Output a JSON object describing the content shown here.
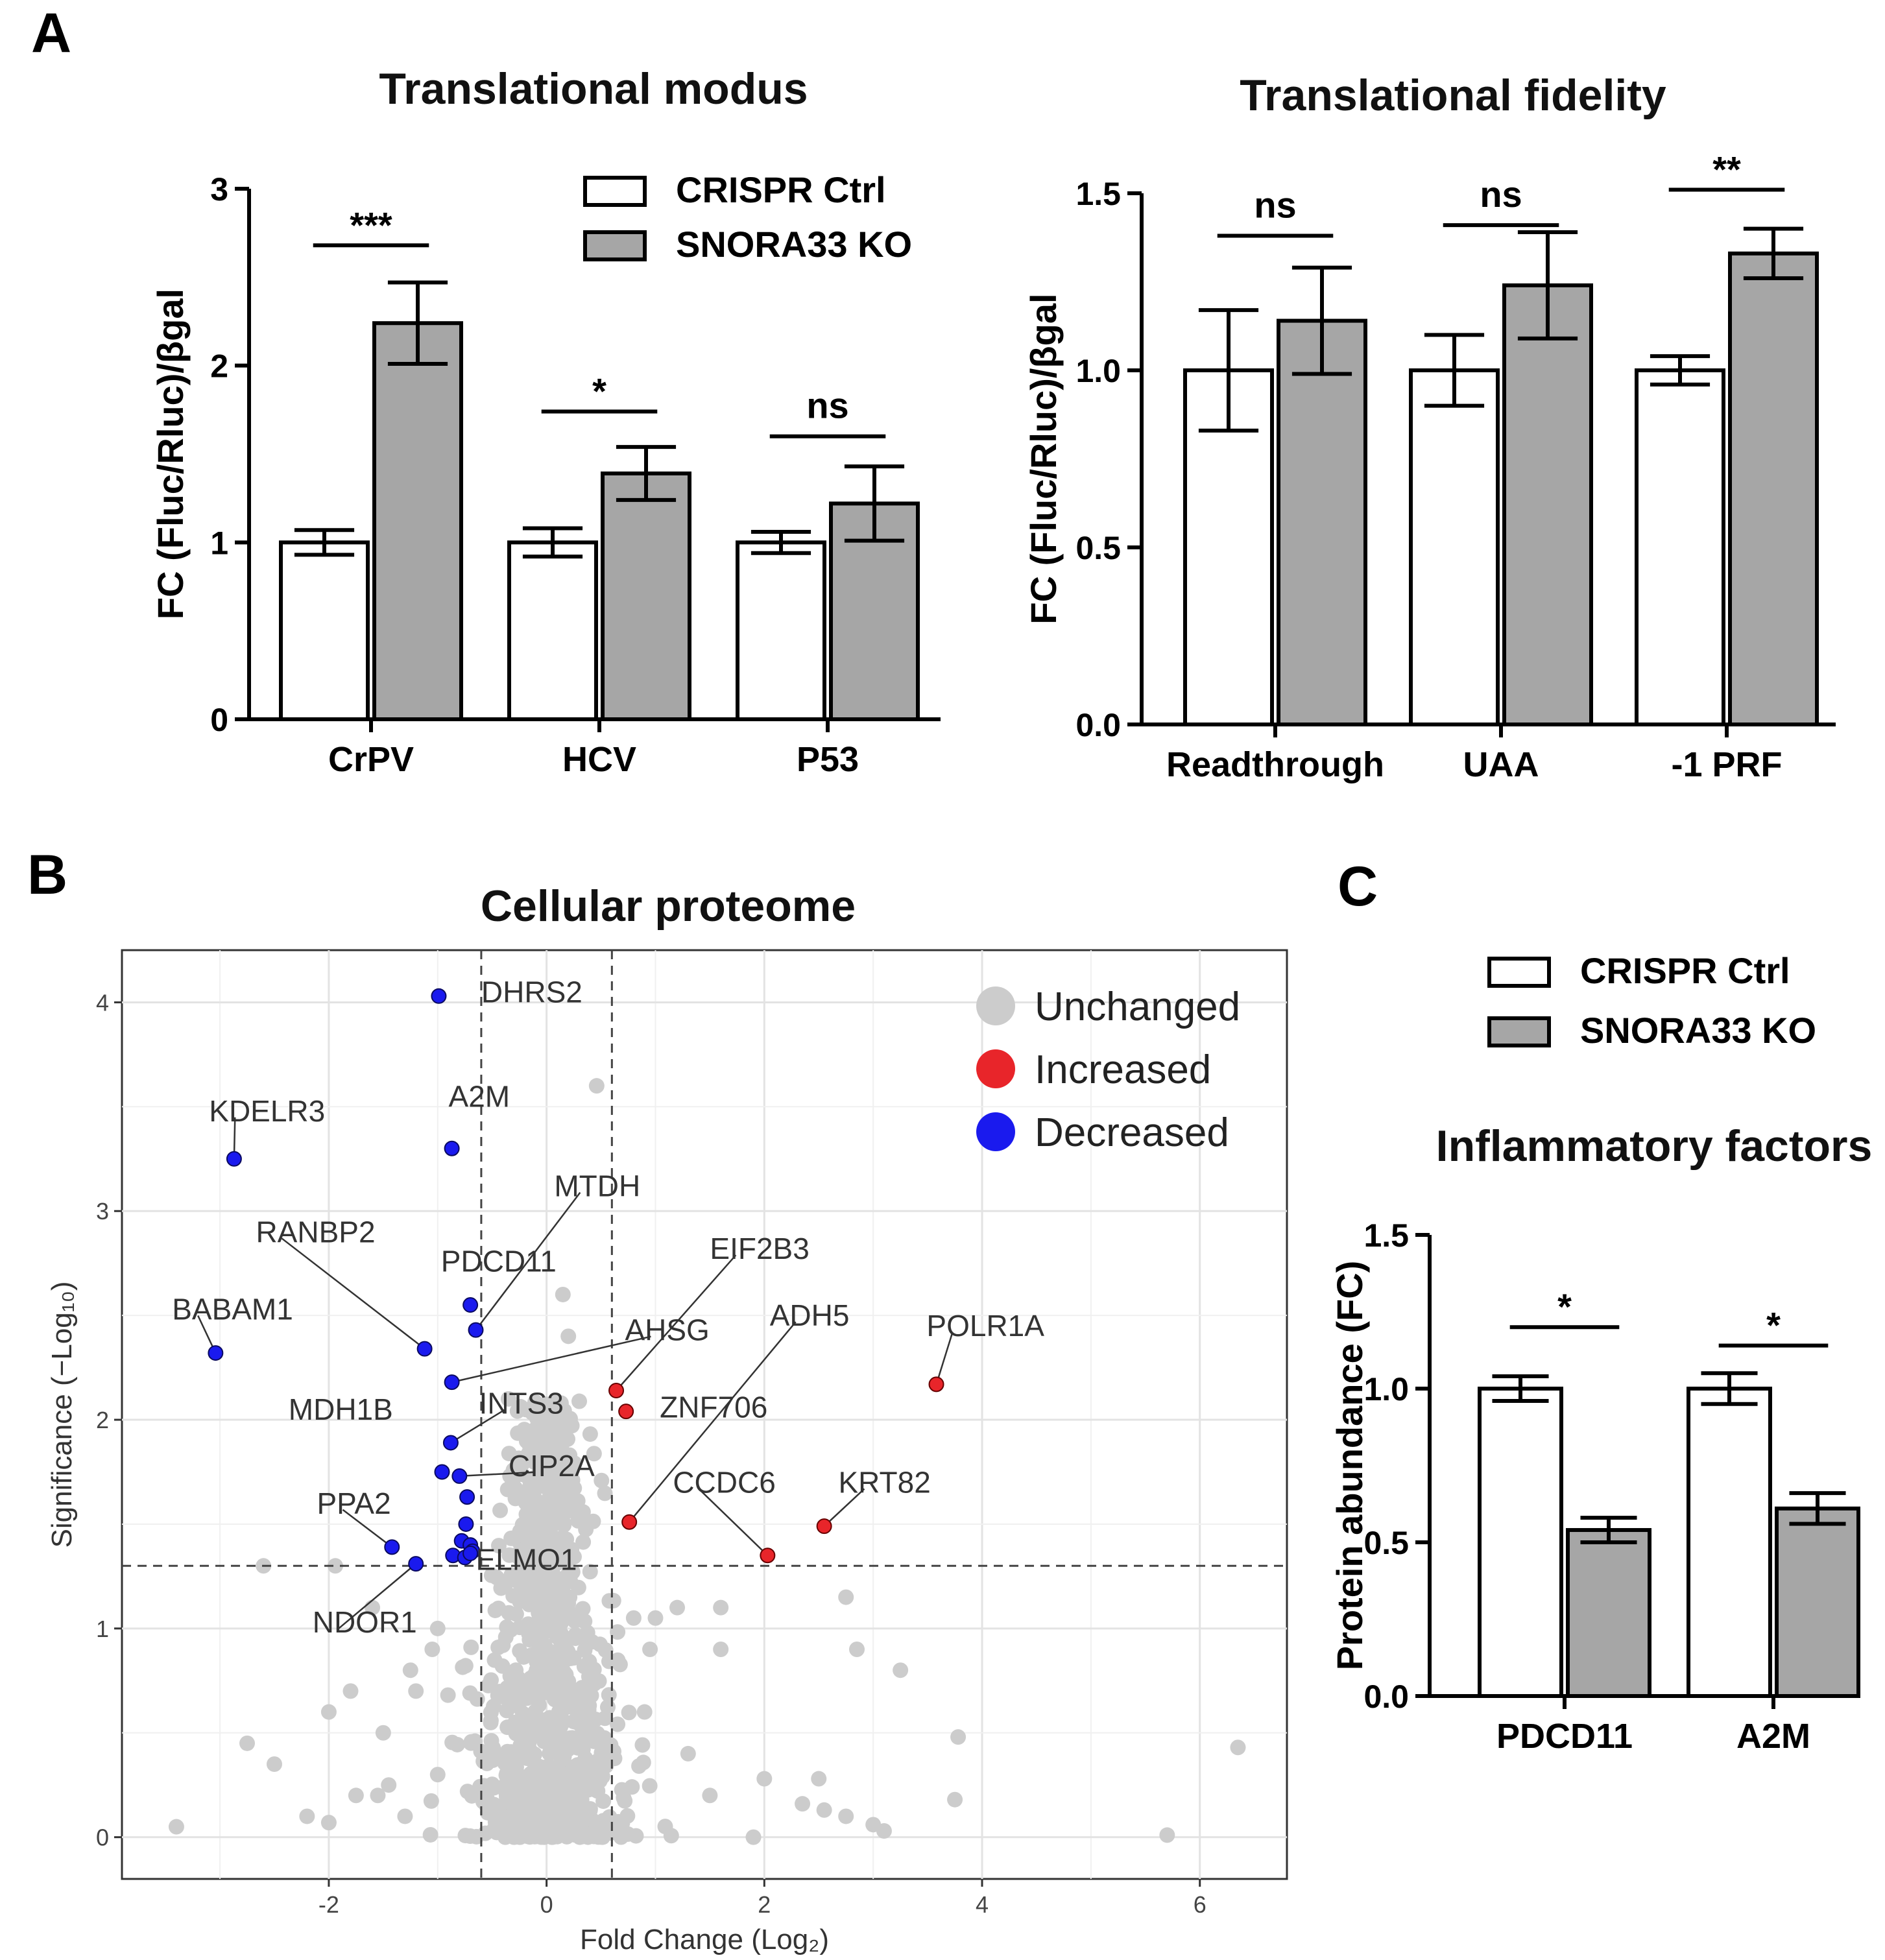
{
  "panels": {
    "A": "A",
    "B": "B",
    "C": "C"
  },
  "legend": {
    "ctrl": "CRISPR Ctrl",
    "ko": "SNORA33 KO"
  },
  "colors": {
    "ctrl": "#ffffff",
    "ko": "#a6a6a6",
    "unchanged": "#cccccc",
    "increased": "#e8252a",
    "decreased": "#1a1aee"
  },
  "chart_data": [
    {
      "id": "modus",
      "type": "bar",
      "title": "Translational modus",
      "ylabel": "FC (Fluc/Rluc)/βgal",
      "ylim": [
        0,
        3
      ],
      "yticks": [
        {
          "v": 0,
          "t": "0"
        },
        {
          "v": 1,
          "t": "1"
        },
        {
          "v": 2,
          "t": "2"
        },
        {
          "v": 3,
          "t": "3"
        }
      ],
      "categories": [
        "CrPV",
        "HCV",
        "P53"
      ],
      "series": [
        {
          "name": "CRISPR Ctrl",
          "values": [
            1.0,
            1.0,
            1.0
          ],
          "errors": [
            0.07,
            0.08,
            0.06
          ]
        },
        {
          "name": "SNORA33 KO",
          "values": [
            2.24,
            1.39,
            1.22
          ],
          "errors": [
            0.23,
            0.15,
            0.21
          ]
        }
      ],
      "significance": [
        "***",
        "*",
        "ns"
      ],
      "sig_bar": [
        2.68,
        1.74,
        1.6
      ]
    },
    {
      "id": "fidelity",
      "type": "bar",
      "title": "Translational fidelity",
      "ylabel": "FC (Fluc/Rluc)/βgal",
      "ylim": [
        0,
        1.5
      ],
      "yticks": [
        {
          "v": 0,
          "t": "0.0"
        },
        {
          "v": 0.5,
          "t": "0.5"
        },
        {
          "v": 1.0,
          "t": "1.0"
        },
        {
          "v": 1.5,
          "t": "1.5"
        }
      ],
      "categories": [
        "Readthrough",
        "UAA",
        "-1 PRF"
      ],
      "series": [
        {
          "name": "CRISPR Ctrl",
          "values": [
            1.0,
            1.0,
            1.0
          ],
          "errors": [
            0.17,
            0.1,
            0.04
          ]
        },
        {
          "name": "SNORA33 KO",
          "values": [
            1.14,
            1.24,
            1.33
          ],
          "errors": [
            0.15,
            0.15,
            0.07
          ]
        }
      ],
      "significance": [
        "ns",
        "ns",
        "**"
      ],
      "sig_bar": [
        1.38,
        1.41,
        1.51
      ]
    },
    {
      "id": "volcano",
      "type": "scatter",
      "title": "Cellular proteome",
      "xlabel": "Fold Change (Log₂)",
      "ylabel": "Significance (−Log₁₀)",
      "xlim": [
        -3.9,
        6.8
      ],
      "ylim": [
        -0.2,
        4.25
      ],
      "xticks": [
        {
          "v": -2,
          "t": "-2"
        },
        {
          "v": 0,
          "t": "0"
        },
        {
          "v": 2,
          "t": "2"
        },
        {
          "v": 4,
          "t": "4"
        },
        {
          "v": 6,
          "t": "6"
        }
      ],
      "yticks": [
        {
          "v": 0,
          "t": "0"
        },
        {
          "v": 1,
          "t": "1"
        },
        {
          "v": 2,
          "t": "2"
        },
        {
          "v": 3,
          "t": "3"
        },
        {
          "v": 4,
          "t": "4"
        }
      ],
      "thresholds": {
        "fc_low": -0.6,
        "fc_high": 0.6,
        "sig": 1.3
      },
      "legend": [
        "Unchanged",
        "Increased",
        "Decreased"
      ],
      "labeled_points": [
        {
          "gene": "DHRS2",
          "x": -0.99,
          "y": 4.03,
          "status": "Decreased",
          "lx": -0.6,
          "ly": 4.05,
          "anchor": "start",
          "leader": false
        },
        {
          "gene": "A2M",
          "x": -0.87,
          "y": 3.3,
          "status": "Decreased",
          "lx": -0.9,
          "ly": 3.55,
          "anchor": "start",
          "leader": false
        },
        {
          "gene": "KDELR3",
          "x": -2.87,
          "y": 3.25,
          "status": "Decreased",
          "lx": -3.1,
          "ly": 3.48,
          "anchor": "start",
          "leader": true
        },
        {
          "gene": "MTDH",
          "x": -0.65,
          "y": 2.43,
          "status": "Decreased",
          "lx": 0.07,
          "ly": 3.12,
          "anchor": "start",
          "leader": true
        },
        {
          "gene": "RANBP2",
          "x": -1.12,
          "y": 2.34,
          "status": "Decreased",
          "lx": -2.67,
          "ly": 2.9,
          "anchor": "start",
          "leader": true
        },
        {
          "gene": "PDCD11",
          "x": -0.7,
          "y": 2.55,
          "status": "Decreased",
          "lx": -0.97,
          "ly": 2.76,
          "anchor": "start",
          "leader": false
        },
        {
          "gene": "BABAM1",
          "x": -3.04,
          "y": 2.32,
          "status": "Decreased",
          "lx": -3.44,
          "ly": 2.53,
          "anchor": "start",
          "leader": true
        },
        {
          "gene": "AHSG",
          "x": -0.87,
          "y": 2.18,
          "status": "Decreased",
          "lx": 0.72,
          "ly": 2.43,
          "anchor": "start",
          "leader": true
        },
        {
          "gene": "INTS3",
          "x": -0.88,
          "y": 1.89,
          "status": "Decreased",
          "lx": -0.62,
          "ly": 2.08,
          "anchor": "start",
          "leader": true
        },
        {
          "gene": "MDH1B",
          "x": -0.96,
          "y": 1.75,
          "status": "Decreased",
          "lx": -2.37,
          "ly": 2.05,
          "anchor": "start",
          "leader": false
        },
        {
          "gene": "CIP2A",
          "x": -0.8,
          "y": 1.73,
          "status": "Decreased",
          "lx": -0.35,
          "ly": 1.78,
          "anchor": "start",
          "leader": true
        },
        {
          "gene": "PPA2",
          "x": -1.42,
          "y": 1.39,
          "status": "Decreased",
          "lx": -2.11,
          "ly": 1.6,
          "anchor": "start",
          "leader": true
        },
        {
          "gene": "ELMO1",
          "x": -0.7,
          "y": 1.36,
          "status": "Decreased",
          "lx": -0.65,
          "ly": 1.33,
          "anchor": "start",
          "leader": false
        },
        {
          "gene": "NDOR1",
          "x": -1.2,
          "y": 1.31,
          "status": "Decreased",
          "lx": -2.15,
          "ly": 1.03,
          "anchor": "start",
          "leader": true
        },
        {
          "gene": "EIF2B3",
          "x": 0.64,
          "y": 2.14,
          "status": "Increased",
          "lx": 1.5,
          "ly": 2.82,
          "anchor": "start",
          "leader": true
        },
        {
          "gene": "ADH5",
          "x": 0.76,
          "y": 1.51,
          "status": "Increased",
          "lx": 2.05,
          "ly": 2.5,
          "anchor": "start",
          "leader": true
        },
        {
          "gene": "ZNF706",
          "x": 0.73,
          "y": 2.04,
          "status": "Increased",
          "lx": 1.04,
          "ly": 2.06,
          "anchor": "start",
          "leader": false
        },
        {
          "gene": "POLR1A",
          "x": 3.58,
          "y": 2.17,
          "status": "Increased",
          "lx": 3.49,
          "ly": 2.45,
          "anchor": "start",
          "leader": true
        },
        {
          "gene": "CCDC6",
          "x": 2.03,
          "y": 1.35,
          "status": "Increased",
          "lx": 1.16,
          "ly": 1.7,
          "anchor": "start",
          "leader": true
        },
        {
          "gene": "KRT82",
          "x": 2.55,
          "y": 1.49,
          "status": "Increased",
          "lx": 2.68,
          "ly": 1.7,
          "anchor": "start",
          "leader": true
        }
      ],
      "unlabeled_decreased": [
        {
          "x": -0.73,
          "y": 1.63
        },
        {
          "x": -0.74,
          "y": 1.5
        },
        {
          "x": -0.78,
          "y": 1.42
        },
        {
          "x": -0.7,
          "y": 1.4
        },
        {
          "x": -0.68,
          "y": 1.37
        },
        {
          "x": -0.86,
          "y": 1.35
        },
        {
          "x": -0.75,
          "y": 1.34
        }
      ],
      "unchanged_outliers": [
        {
          "x": 0.46,
          "y": 3.6
        },
        {
          "x": 0.15,
          "y": 2.6
        },
        {
          "x": -0.35,
          "y": 2.1
        },
        {
          "x": 0.2,
          "y": 2.4
        },
        {
          "x": -2.6,
          "y": 1.3
        },
        {
          "x": -1.94,
          "y": 1.3
        },
        {
          "x": -1.6,
          "y": 1.1
        },
        {
          "x": -1.0,
          "y": 1.0
        },
        {
          "x": -1.05,
          "y": 0.9
        },
        {
          "x": -1.25,
          "y": 0.8
        },
        {
          "x": -1.2,
          "y": 0.7
        },
        {
          "x": -1.8,
          "y": 0.7
        },
        {
          "x": -2.0,
          "y": 0.6
        },
        {
          "x": -1.5,
          "y": 0.5
        },
        {
          "x": -2.75,
          "y": 0.45
        },
        {
          "x": -2.5,
          "y": 0.35
        },
        {
          "x": -1.45,
          "y": 0.25
        },
        {
          "x": -1.55,
          "y": 0.2
        },
        {
          "x": -1.75,
          "y": 0.2
        },
        {
          "x": -2.2,
          "y": 0.1
        },
        {
          "x": -2.0,
          "y": 0.07
        },
        {
          "x": -3.4,
          "y": 0.05
        },
        {
          "x": -1.0,
          "y": 0.3
        },
        {
          "x": -1.3,
          "y": 0.1
        },
        {
          "x": 0.8,
          "y": 1.05
        },
        {
          "x": 1.0,
          "y": 1.05
        },
        {
          "x": 1.2,
          "y": 1.1
        },
        {
          "x": 0.95,
          "y": 0.9
        },
        {
          "x": 1.6,
          "y": 1.1
        },
        {
          "x": 1.6,
          "y": 0.9
        },
        {
          "x": 2.75,
          "y": 1.15
        },
        {
          "x": 2.85,
          "y": 0.9
        },
        {
          "x": 3.25,
          "y": 0.8
        },
        {
          "x": 3.78,
          "y": 0.48
        },
        {
          "x": 3.75,
          "y": 0.18
        },
        {
          "x": 6.35,
          "y": 0.43
        },
        {
          "x": 5.7,
          "y": 0.01
        },
        {
          "x": 2.0,
          "y": 0.28
        },
        {
          "x": 2.5,
          "y": 0.28
        },
        {
          "x": 2.35,
          "y": 0.16
        },
        {
          "x": 2.55,
          "y": 0.13
        },
        {
          "x": 2.75,
          "y": 0.1
        },
        {
          "x": 3.0,
          "y": 0.06
        },
        {
          "x": 3.1,
          "y": 0.03
        },
        {
          "x": 1.9,
          "y": 0.0
        },
        {
          "x": 1.3,
          "y": 0.4
        },
        {
          "x": 1.5,
          "y": 0.2
        },
        {
          "x": 0.9,
          "y": 0.6
        }
      ],
      "unchanged_cloud": {
        "n": 900,
        "mean_x": 0,
        "sd_x": 0.3,
        "max_y": 2.1
      }
    },
    {
      "id": "inflammatory",
      "type": "bar",
      "title": "Inflammatory factors",
      "ylabel": "Protein abundance (FC)",
      "ylim": [
        0,
        1.5
      ],
      "yticks": [
        {
          "v": 0,
          "t": "0.0"
        },
        {
          "v": 0.5,
          "t": "0.5"
        },
        {
          "v": 1.0,
          "t": "1.0"
        },
        {
          "v": 1.5,
          "t": "1.5"
        }
      ],
      "categories": [
        "PDCD11",
        "A2M"
      ],
      "series": [
        {
          "name": "CRISPR Ctrl",
          "values": [
            1.0,
            1.0
          ],
          "errors": [
            0.04,
            0.05
          ]
        },
        {
          "name": "SNORA33 KO",
          "values": [
            0.54,
            0.61
          ],
          "errors": [
            0.04,
            0.05
          ]
        }
      ],
      "significance": [
        "*",
        "*"
      ],
      "sig_bar": [
        1.2,
        1.14
      ]
    }
  ]
}
